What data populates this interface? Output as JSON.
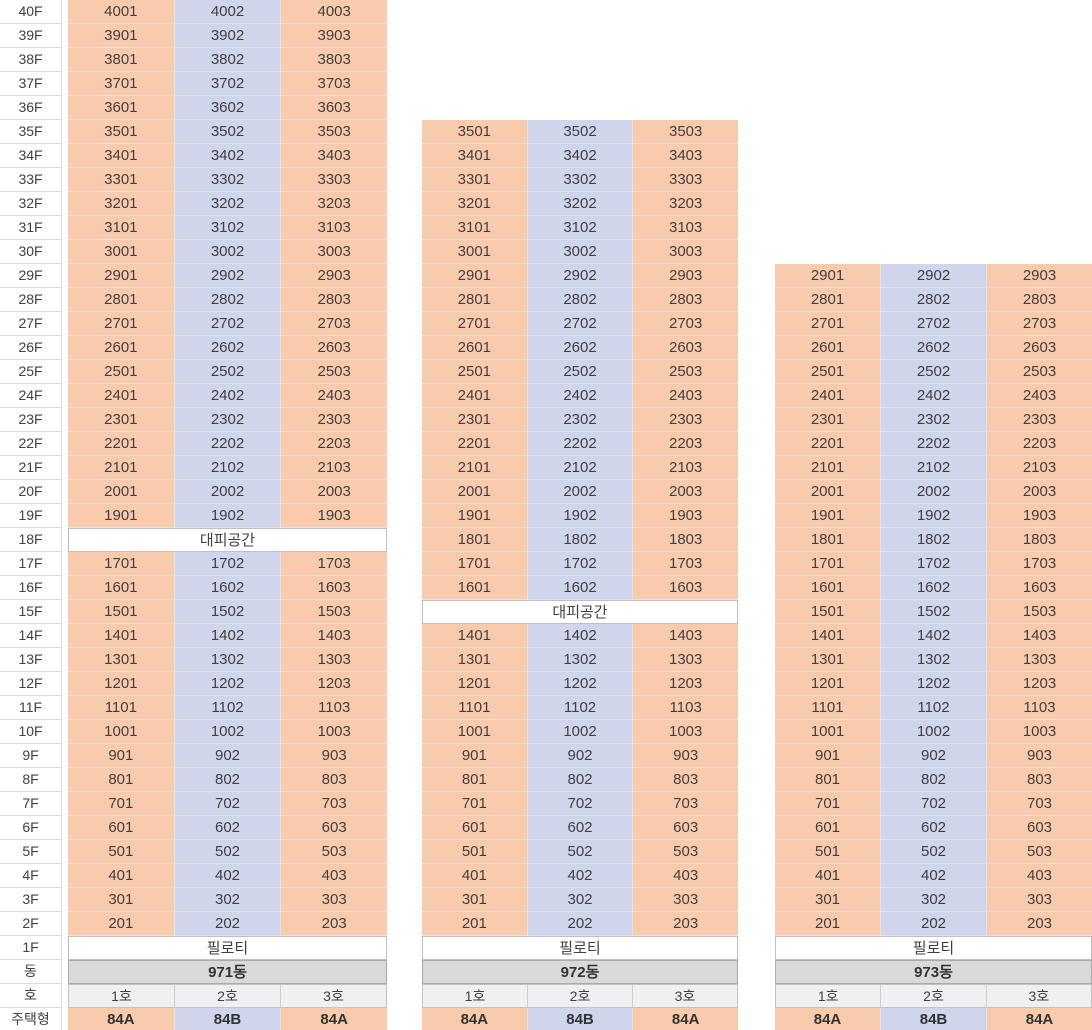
{
  "chart_data": {
    "type": "table",
    "refuge_label": "대피공간",
    "piloti_label": "필로티",
    "floor_labels": [
      "40F",
      "39F",
      "38F",
      "37F",
      "36F",
      "35F",
      "34F",
      "33F",
      "32F",
      "31F",
      "30F",
      "29F",
      "28F",
      "27F",
      "26F",
      "25F",
      "24F",
      "23F",
      "22F",
      "21F",
      "20F",
      "19F",
      "18F",
      "17F",
      "16F",
      "15F",
      "14F",
      "13F",
      "12F",
      "11F",
      "10F",
      "9F",
      "8F",
      "7F",
      "6F",
      "5F",
      "4F",
      "3F",
      "2F",
      "1F",
      "동",
      "호",
      "주택형"
    ],
    "colors": {
      "unit_columns": [
        "#F8CBAD",
        "#CFD5EA",
        "#F8CBAD"
      ],
      "dong_row": "#D9D9D9",
      "ho_row": "#F0F0F3",
      "special_row": "#FFFFFF"
    },
    "buildings": [
      {
        "name": "971동",
        "ho": [
          "1호",
          "2호",
          "3호"
        ],
        "types": [
          "84A",
          "84B",
          "84A"
        ],
        "rows": [
          [
            "4001",
            "4002",
            "4003"
          ],
          [
            "3901",
            "3902",
            "3903"
          ],
          [
            "3801",
            "3802",
            "3803"
          ],
          [
            "3701",
            "3702",
            "3703"
          ],
          [
            "3601",
            "3602",
            "3603"
          ],
          [
            "3501",
            "3502",
            "3503"
          ],
          [
            "3401",
            "3402",
            "3403"
          ],
          [
            "3301",
            "3302",
            "3303"
          ],
          [
            "3201",
            "3202",
            "3203"
          ],
          [
            "3101",
            "3102",
            "3103"
          ],
          [
            "3001",
            "3002",
            "3003"
          ],
          [
            "2901",
            "2902",
            "2903"
          ],
          [
            "2801",
            "2802",
            "2803"
          ],
          [
            "2701",
            "2702",
            "2703"
          ],
          [
            "2601",
            "2602",
            "2603"
          ],
          [
            "2501",
            "2502",
            "2503"
          ],
          [
            "2401",
            "2402",
            "2403"
          ],
          [
            "2301",
            "2302",
            "2303"
          ],
          [
            "2201",
            "2202",
            "2203"
          ],
          [
            "2101",
            "2102",
            "2103"
          ],
          [
            "2001",
            "2002",
            "2003"
          ],
          [
            "1901",
            "1902",
            "1903"
          ],
          "대피공간",
          [
            "1701",
            "1702",
            "1703"
          ],
          [
            "1601",
            "1602",
            "1603"
          ],
          [
            "1501",
            "1502",
            "1503"
          ],
          [
            "1401",
            "1402",
            "1403"
          ],
          [
            "1301",
            "1302",
            "1303"
          ],
          [
            "1201",
            "1202",
            "1203"
          ],
          [
            "1101",
            "1102",
            "1103"
          ],
          [
            "1001",
            "1002",
            "1003"
          ],
          [
            "901",
            "902",
            "903"
          ],
          [
            "801",
            "802",
            "803"
          ],
          [
            "701",
            "702",
            "703"
          ],
          [
            "601",
            "602",
            "603"
          ],
          [
            "501",
            "502",
            "503"
          ],
          [
            "401",
            "402",
            "403"
          ],
          [
            "301",
            "302",
            "303"
          ],
          [
            "201",
            "202",
            "203"
          ],
          "필로티"
        ]
      },
      {
        "name": "972동",
        "ho": [
          "1호",
          "2호",
          "3호"
        ],
        "types": [
          "84A",
          "84B",
          "84A"
        ],
        "rows": [
          [
            "3501",
            "3502",
            "3503"
          ],
          [
            "3401",
            "3402",
            "3403"
          ],
          [
            "3301",
            "3302",
            "3303"
          ],
          [
            "3201",
            "3202",
            "3203"
          ],
          [
            "3101",
            "3102",
            "3103"
          ],
          [
            "3001",
            "3002",
            "3003"
          ],
          [
            "2901",
            "2902",
            "2903"
          ],
          [
            "2801",
            "2802",
            "2803"
          ],
          [
            "2701",
            "2702",
            "2703"
          ],
          [
            "2601",
            "2602",
            "2603"
          ],
          [
            "2501",
            "2502",
            "2503"
          ],
          [
            "2401",
            "2402",
            "2403"
          ],
          [
            "2301",
            "2302",
            "2303"
          ],
          [
            "2201",
            "2202",
            "2203"
          ],
          [
            "2101",
            "2102",
            "2103"
          ],
          [
            "2001",
            "2002",
            "2003"
          ],
          [
            "1901",
            "1902",
            "1903"
          ],
          [
            "1801",
            "1802",
            "1803"
          ],
          [
            "1701",
            "1702",
            "1703"
          ],
          [
            "1601",
            "1602",
            "1603"
          ],
          "대피공간",
          [
            "1401",
            "1402",
            "1403"
          ],
          [
            "1301",
            "1302",
            "1303"
          ],
          [
            "1201",
            "1202",
            "1203"
          ],
          [
            "1101",
            "1102",
            "1103"
          ],
          [
            "1001",
            "1002",
            "1003"
          ],
          [
            "901",
            "902",
            "903"
          ],
          [
            "801",
            "802",
            "803"
          ],
          [
            "701",
            "702",
            "703"
          ],
          [
            "601",
            "602",
            "603"
          ],
          [
            "501",
            "502",
            "503"
          ],
          [
            "401",
            "402",
            "403"
          ],
          [
            "301",
            "302",
            "303"
          ],
          [
            "201",
            "202",
            "203"
          ],
          "필로티"
        ]
      },
      {
        "name": "973동",
        "ho": [
          "1호",
          "2호",
          "3호"
        ],
        "types": [
          "84A",
          "84B",
          "84A"
        ],
        "rows": [
          [
            "2901",
            "2902",
            "2903"
          ],
          [
            "2801",
            "2802",
            "2803"
          ],
          [
            "2701",
            "2702",
            "2703"
          ],
          [
            "2601",
            "2602",
            "2603"
          ],
          [
            "2501",
            "2502",
            "2503"
          ],
          [
            "2401",
            "2402",
            "2403"
          ],
          [
            "2301",
            "2302",
            "2303"
          ],
          [
            "2201",
            "2202",
            "2203"
          ],
          [
            "2101",
            "2102",
            "2103"
          ],
          [
            "2001",
            "2002",
            "2003"
          ],
          [
            "1901",
            "1902",
            "1903"
          ],
          [
            "1801",
            "1802",
            "1803"
          ],
          [
            "1701",
            "1702",
            "1703"
          ],
          [
            "1601",
            "1602",
            "1603"
          ],
          [
            "1501",
            "1502",
            "1503"
          ],
          [
            "1401",
            "1402",
            "1403"
          ],
          [
            "1301",
            "1302",
            "1303"
          ],
          [
            "1201",
            "1202",
            "1203"
          ],
          [
            "1101",
            "1102",
            "1103"
          ],
          [
            "1001",
            "1002",
            "1003"
          ],
          [
            "901",
            "902",
            "903"
          ],
          [
            "801",
            "802",
            "803"
          ],
          [
            "701",
            "702",
            "703"
          ],
          [
            "601",
            "602",
            "603"
          ],
          [
            "501",
            "502",
            "503"
          ],
          [
            "401",
            "402",
            "403"
          ],
          [
            "301",
            "302",
            "303"
          ],
          [
            "201",
            "202",
            "203"
          ],
          "필로티"
        ]
      }
    ]
  }
}
